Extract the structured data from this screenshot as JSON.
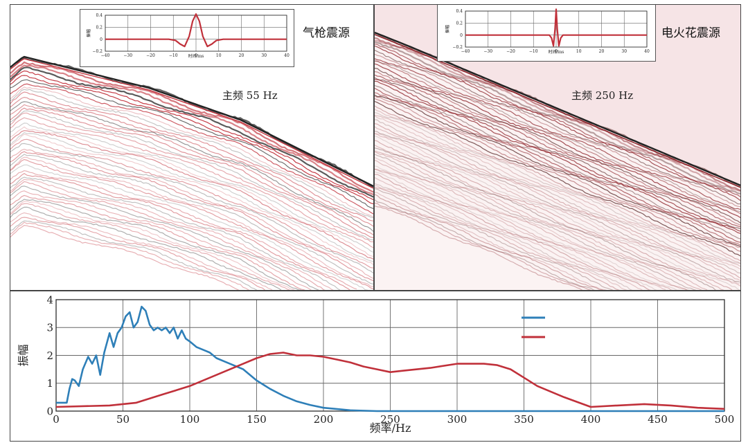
{
  "left_panel": {
    "source_label": "气枪震源",
    "dominant_freq_label": "主频 55 Hz",
    "trace_color": "#c0303a"
  },
  "right_panel": {
    "source_label": "电火花震源",
    "dominant_freq_label": "主频 250 Hz",
    "trace_color": "#8a1d24",
    "background_color": "#f6e4e6"
  },
  "chart_data": [
    {
      "type": "line",
      "xlabel": "时间/ms",
      "ylabel": "振幅",
      "xlim": [
        -40,
        40
      ],
      "ylim": [
        -0.2,
        0.4
      ],
      "xticks": [
        "−40",
        "−30",
        "−20",
        "−10",
        "0",
        "10",
        "20",
        "30",
        "40"
      ],
      "yticks": [
        "0.4",
        "0.2",
        "0",
        "−0.2"
      ],
      "grid": true,
      "series": [
        {
          "color": "#c0303a",
          "x": [
            -40,
            -20,
            -12,
            -9,
            -7,
            -5,
            -3,
            -1.5,
            0,
            1.5,
            3,
            5,
            7,
            9,
            12,
            20,
            40
          ],
          "y": [
            0,
            0,
            0,
            -0.02,
            -0.08,
            -0.12,
            0.05,
            0.3,
            0.42,
            0.3,
            0.05,
            -0.12,
            -0.08,
            -0.02,
            0,
            0,
            0
          ]
        }
      ]
    },
    {
      "type": "line",
      "xlabel": "时间/ms",
      "ylabel": "振幅",
      "xlim": [
        -40,
        40
      ],
      "ylim": [
        -0.2,
        0.4
      ],
      "xticks": [
        "−40",
        "−30",
        "−20",
        "−10",
        "0",
        "10",
        "20",
        "30",
        "40"
      ],
      "yticks": [
        "0.4",
        "0.2",
        "0",
        "−0.2"
      ],
      "grid": true,
      "series": [
        {
          "color": "#c0303a",
          "x": [
            -40,
            -3,
            -2,
            -1.2,
            -0.5,
            0,
            0.5,
            1.2,
            2,
            3,
            40
          ],
          "y": [
            0,
            0,
            -0.05,
            -0.18,
            0.1,
            0.43,
            0.1,
            -0.18,
            -0.05,
            0,
            0
          ]
        }
      ]
    },
    {
      "type": "line",
      "xlabel": "频率/Hz",
      "ylabel": "振幅",
      "xlim": [
        0,
        500
      ],
      "ylim": [
        0,
        4
      ],
      "xticks": [
        "0",
        "50",
        "100",
        "150",
        "200",
        "250",
        "300",
        "350",
        "400",
        "450",
        "500"
      ],
      "yticks": [
        "0",
        "1",
        "2",
        "3",
        "4"
      ],
      "grid": true,
      "legend": "top-right",
      "series": [
        {
          "color": "#2e7fb8",
          "x": [
            0,
            8,
            10,
            12,
            14,
            17,
            20,
            24,
            27,
            30,
            33,
            36,
            40,
            43,
            46,
            49,
            52,
            55,
            58,
            61,
            64,
            67,
            70,
            73,
            76,
            79,
            82,
            85,
            88,
            91,
            94,
            97,
            100,
            105,
            110,
            115,
            120,
            125,
            130,
            140,
            150,
            160,
            170,
            180,
            190,
            200,
            220,
            240,
            260,
            300,
            350,
            400,
            450,
            500
          ],
          "y": [
            0.3,
            0.3,
            0.8,
            1.15,
            1.1,
            0.9,
            1.5,
            1.95,
            1.7,
            2.0,
            1.3,
            2.1,
            2.8,
            2.3,
            2.8,
            3.0,
            3.4,
            3.55,
            3.0,
            3.2,
            3.75,
            3.6,
            3.1,
            2.9,
            3.0,
            2.9,
            3.0,
            2.8,
            3.0,
            2.6,
            2.9,
            2.6,
            2.5,
            2.3,
            2.2,
            2.1,
            1.9,
            1.8,
            1.7,
            1.5,
            1.1,
            0.8,
            0.55,
            0.35,
            0.22,
            0.12,
            0.03,
            0.0,
            0.0,
            0.0,
            0.0,
            0.0,
            0.0,
            0.0
          ]
        },
        {
          "color": "#c0303a",
          "x": [
            0,
            40,
            60,
            80,
            100,
            120,
            140,
            150,
            160,
            170,
            180,
            190,
            200,
            210,
            220,
            230,
            240,
            250,
            260,
            280,
            300,
            320,
            330,
            340,
            350,
            360,
            380,
            400,
            420,
            440,
            460,
            480,
            500
          ],
          "y": [
            0.15,
            0.2,
            0.3,
            0.6,
            0.9,
            1.3,
            1.7,
            1.9,
            2.05,
            2.1,
            2.0,
            2.0,
            1.95,
            1.85,
            1.75,
            1.6,
            1.5,
            1.4,
            1.45,
            1.55,
            1.7,
            1.7,
            1.65,
            1.5,
            1.2,
            0.9,
            0.5,
            0.15,
            0.2,
            0.25,
            0.2,
            0.12,
            0.08
          ]
        }
      ]
    }
  ]
}
